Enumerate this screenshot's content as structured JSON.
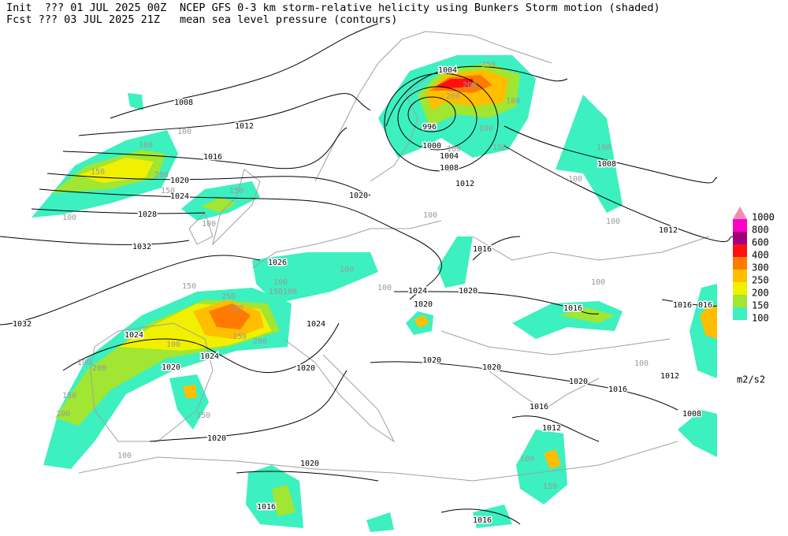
{
  "header": {
    "init": "Init  ??? 01 JUL 2025 00Z",
    "fcst": "Fcst ??? 03 JUL 2025 21Z",
    "title": "NCEP GFS 0-3 km storm-relative helicity using Bunkers Storm motion (shaded)",
    "subtitle": "mean sea level pressure (contours)"
  },
  "legend": {
    "items": [
      {
        "label": "1000",
        "color": "#f08cb4"
      },
      {
        "label": "800",
        "color": "#ff00c8"
      },
      {
        "label": "600",
        "color": "#a0007a"
      },
      {
        "label": "400",
        "color": "#ff1010"
      },
      {
        "label": "300",
        "color": "#ff7a00"
      },
      {
        "label": "250",
        "color": "#ffbe00"
      },
      {
        "label": "200",
        "color": "#f0f000"
      },
      {
        "label": "150",
        "color": "#a0e632"
      },
      {
        "label": "100",
        "color": "#3cf0c0"
      }
    ],
    "unit": "m2/s2"
  },
  "isobar_labels": [
    "1008",
    "1012",
    "1016",
    "1020",
    "1024",
    "1028",
    "1032",
    "1032",
    "1024",
    "1024",
    "1020",
    "1020",
    "1026",
    "1024",
    "1020",
    "1020",
    "1024",
    "1020",
    "1016",
    "1020",
    "1012",
    "1008",
    "1004",
    "1000",
    "996",
    "1004",
    "1008",
    "1012",
    "1016",
    "1016",
    "016",
    "1020",
    "1020",
    "1020",
    "1016",
    "1012",
    "1008",
    "1016",
    "1012",
    "1020",
    "1016",
    "1016"
  ],
  "srh_labels": [
    "100",
    "100",
    "100",
    "150",
    "200",
    "150",
    "150",
    "100",
    "250",
    "300",
    "200",
    "150",
    "100",
    "100",
    "200",
    "150",
    "100",
    "150",
    "150",
    "100",
    "100",
    "150",
    "100",
    "100",
    "100",
    "100",
    "100",
    "100",
    "150",
    "100",
    "250",
    "200",
    "200",
    "100",
    "100",
    "150",
    "100",
    "100",
    "100",
    "100"
  ]
}
